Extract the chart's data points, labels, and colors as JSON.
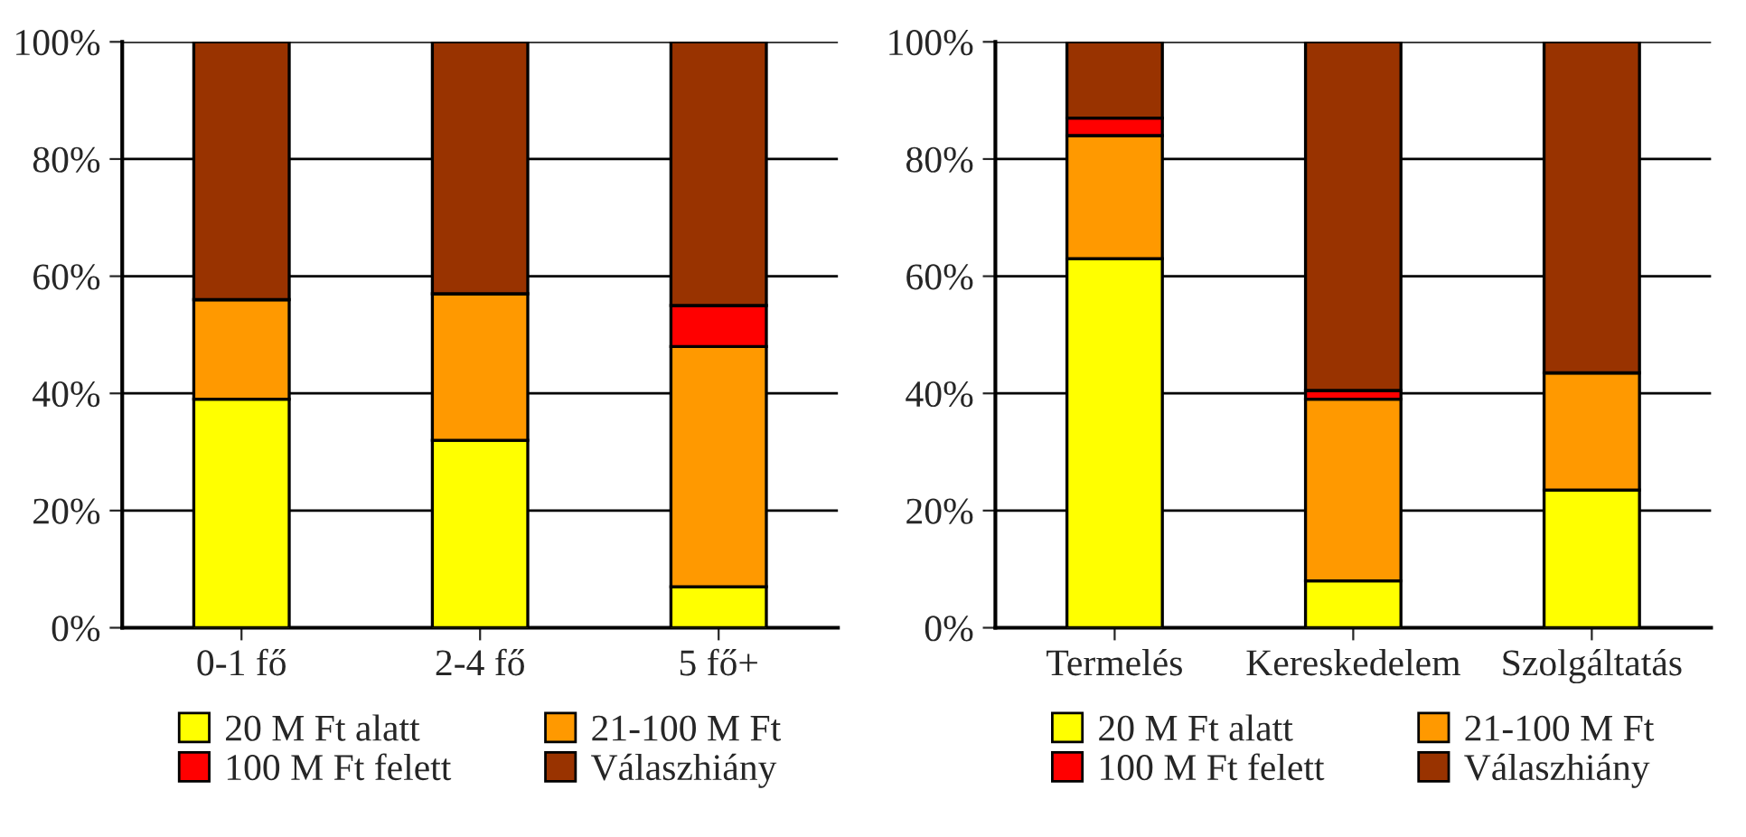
{
  "chart_data": [
    {
      "type": "bar",
      "stacked": true,
      "categories": [
        "0-1 fő",
        "2-4 fő",
        "5 fő+"
      ],
      "ylim": [
        0,
        100
      ],
      "yticks": [
        {
          "value": 0,
          "label": "0%"
        },
        {
          "value": 20,
          "label": "20%"
        },
        {
          "value": 40,
          "label": "40%"
        },
        {
          "value": 60,
          "label": "60%"
        },
        {
          "value": 80,
          "label": "80%"
        },
        {
          "value": 100,
          "label": "100%"
        }
      ],
      "grid": "y",
      "legend": "bottom",
      "series": [
        {
          "name": "20 M Ft alatt",
          "color": "#ffff00",
          "values": [
            39,
            32,
            7
          ]
        },
        {
          "name": "21-100 M Ft",
          "color": "#ff9900",
          "values": [
            17,
            25,
            41
          ]
        },
        {
          "name": "100 M Ft felett",
          "color": "#ff0000",
          "values": [
            0,
            0,
            7
          ]
        },
        {
          "name": "Válaszhiány",
          "color": "#993300",
          "values": [
            44,
            43,
            45
          ]
        }
      ]
    },
    {
      "type": "bar",
      "stacked": true,
      "categories": [
        "Termelés",
        "Kereskedelem",
        "Szolgáltatás"
      ],
      "ylim": [
        0,
        100
      ],
      "yticks": [
        {
          "value": 0,
          "label": "0%"
        },
        {
          "value": 20,
          "label": "20%"
        },
        {
          "value": 40,
          "label": "40%"
        },
        {
          "value": 60,
          "label": "60%"
        },
        {
          "value": 80,
          "label": "80%"
        },
        {
          "value": 100,
          "label": "100%"
        }
      ],
      "grid": "y",
      "legend": "bottom",
      "series": [
        {
          "name": "20 M Ft alatt",
          "color": "#ffff00",
          "values": [
            63,
            8,
            23.5
          ]
        },
        {
          "name": "21-100 M Ft",
          "color": "#ff9900",
          "values": [
            21,
            31,
            20
          ]
        },
        {
          "name": "100 M Ft felett",
          "color": "#ff0000",
          "values": [
            3,
            1.5,
            0
          ]
        },
        {
          "name": "Válaszhiány",
          "color": "#993300",
          "values": [
            13,
            59.5,
            56.5
          ]
        }
      ]
    }
  ]
}
